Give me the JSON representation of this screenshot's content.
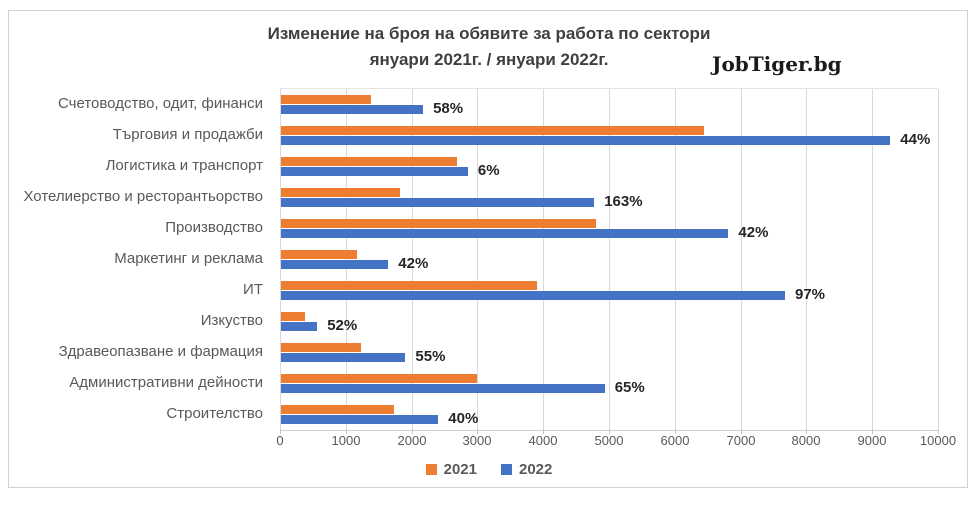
{
  "branding": {
    "logo_text": "JobTiger.bg"
  },
  "chart_data": {
    "type": "bar",
    "orientation": "horizontal",
    "title": "Изменение на броя на обявите за работа по сектори",
    "subtitle": "януари 2021г. / януари 2022г.",
    "categories": [
      "Счетоводство, одит, финанси",
      "Търговия и продажби",
      "Логистика и транспорт",
      "Хотелиерство и ресторантьорство",
      "Производство",
      "Маркетинг и реклама",
      "ИТ",
      "Изкуство",
      "Здравеопазване и фармация",
      "Административни дейности",
      "Строителство"
    ],
    "series": [
      {
        "name": "2021",
        "color": "#ED7D31",
        "values": [
          1370,
          6430,
          2680,
          1810,
          4790,
          1150,
          3890,
          360,
          1220,
          2980,
          1710
        ]
      },
      {
        "name": "2022",
        "color": "#4472C4",
        "values": [
          2160,
          9260,
          2840,
          4760,
          6800,
          1630,
          7660,
          550,
          1890,
          4920,
          2390
        ]
      }
    ],
    "bar_labels": [
      "58%",
      "44%",
      "6%",
      "163%",
      "42%",
      "42%",
      "97%",
      "52%",
      "55%",
      "65%",
      "40%"
    ],
    "xlim": [
      0,
      10000
    ],
    "x_ticks": [
      0,
      1000,
      2000,
      3000,
      4000,
      5000,
      6000,
      7000,
      8000,
      9000,
      10000
    ],
    "grid": true,
    "legend_position": "bottom",
    "colors": {
      "grid": "#D9D9D9",
      "axis_text": "#595959",
      "title_text": "#3F3F3F",
      "value_label_text": "#262626"
    }
  }
}
